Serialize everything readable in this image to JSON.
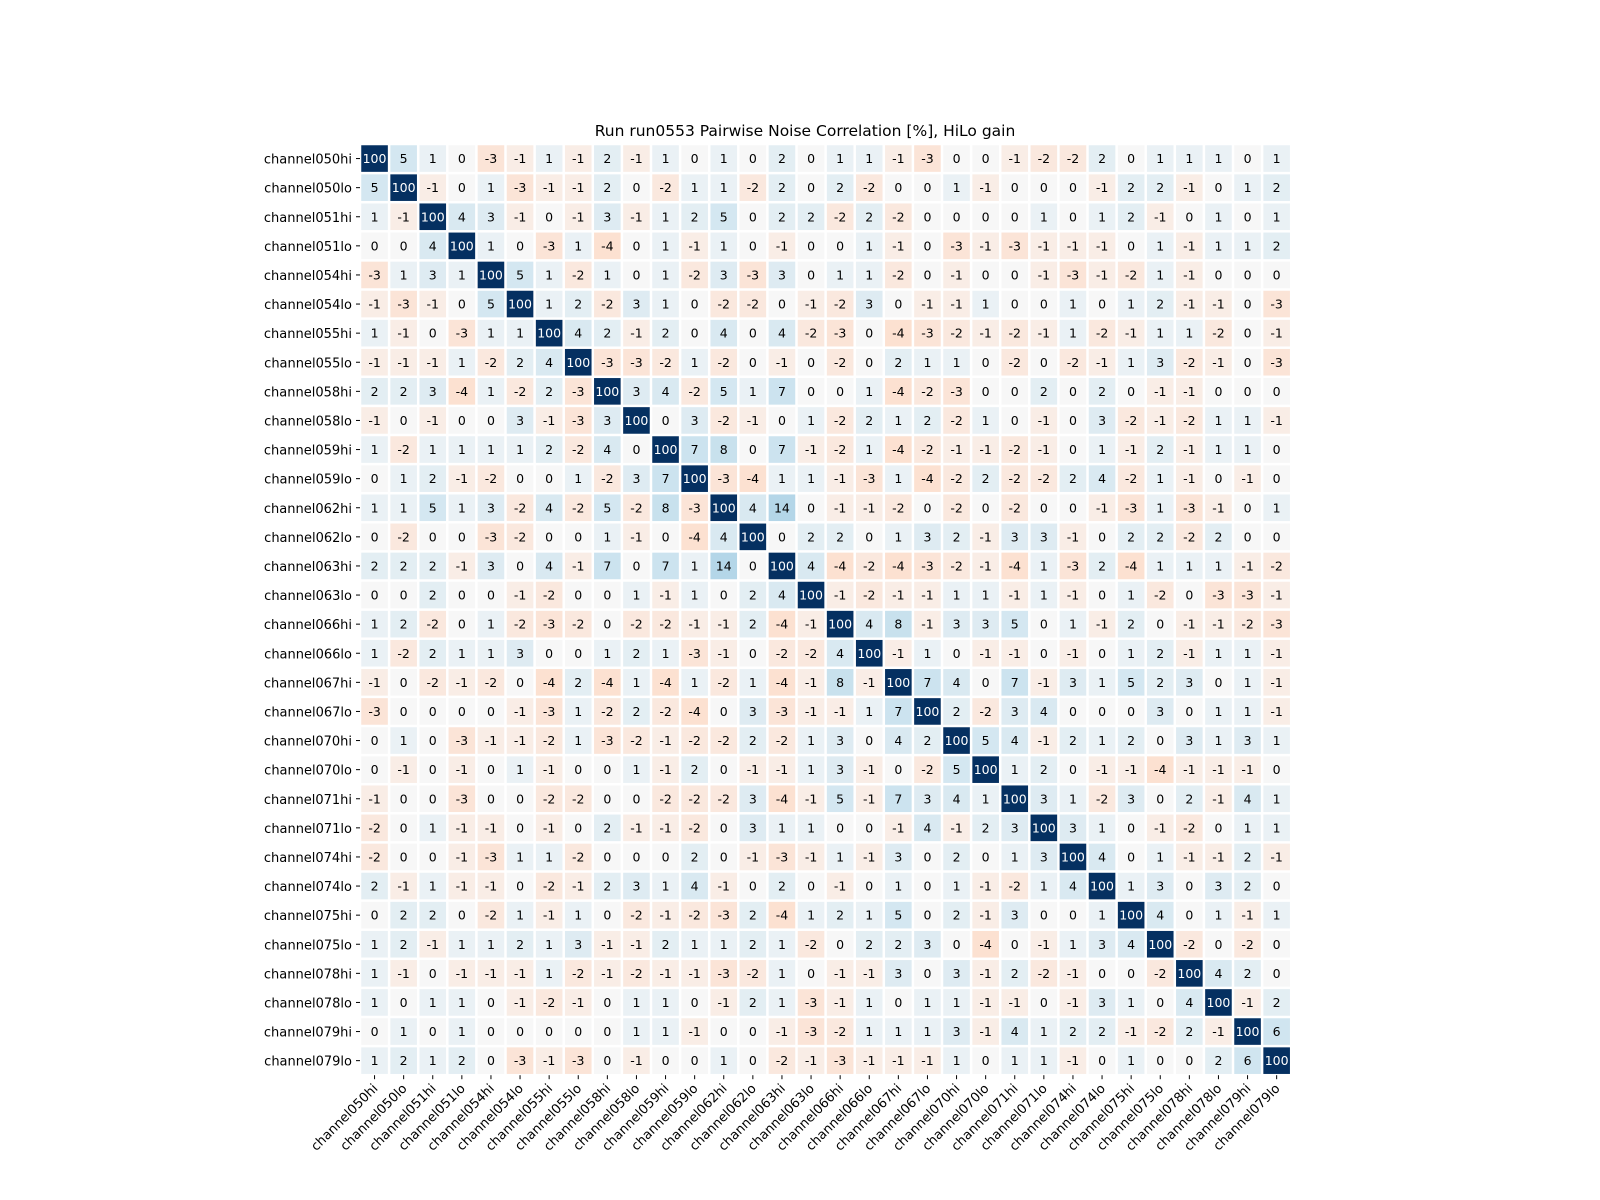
{
  "chart_data": {
    "type": "heatmap",
    "title": "Run run0553 Pairwise Noise Correlation [%], HiLo gain",
    "xlabel": "",
    "ylabel": "",
    "colorscale": "RdBu diverging (negative = red, positive = blue), range -100 to 100",
    "colors": {
      "positive_max": "#053061",
      "negative_max": "#67001f",
      "zero": "#f7f7f7",
      "grid": "#ffffff"
    },
    "legend": "none",
    "labels": [
      "channel050hi",
      "channel050lo",
      "channel051hi",
      "channel051lo",
      "channel054hi",
      "channel054lo",
      "channel055hi",
      "channel055lo",
      "channel058hi",
      "channel058lo",
      "channel059hi",
      "channel059lo",
      "channel062hi",
      "channel062lo",
      "channel063hi",
      "channel063lo",
      "channel066hi",
      "channel066lo",
      "channel067hi",
      "channel067lo",
      "channel070hi",
      "channel070lo",
      "channel071hi",
      "channel071lo",
      "channel074hi",
      "channel074lo",
      "channel075hi",
      "channel075lo",
      "channel078hi",
      "channel078lo",
      "channel079hi",
      "channel079lo"
    ],
    "values": [
      [
        100,
        5,
        1,
        0,
        -3,
        -1,
        1,
        -1,
        2,
        -1,
        1,
        0,
        1,
        0,
        2,
        0,
        1,
        1,
        -1,
        -3,
        0,
        0,
        -1,
        -2,
        -2,
        2,
        0,
        1,
        1,
        1,
        0,
        1
      ],
      [
        5,
        100,
        -1,
        0,
        1,
        -3,
        -1,
        -1,
        2,
        0,
        -2,
        1,
        1,
        -2,
        2,
        0,
        2,
        -2,
        0,
        0,
        1,
        -1,
        0,
        0,
        0,
        -1,
        2,
        2,
        -1,
        0,
        1,
        2
      ],
      [
        1,
        -1,
        100,
        4,
        3,
        -1,
        0,
        -1,
        3,
        -1,
        1,
        2,
        5,
        0,
        2,
        2,
        -2,
        2,
        -2,
        0,
        0,
        0,
        0,
        1,
        0,
        1,
        2,
        -1,
        0,
        1,
        0,
        1
      ],
      [
        0,
        0,
        4,
        100,
        1,
        0,
        -3,
        1,
        -4,
        0,
        1,
        -1,
        1,
        0,
        -1,
        0,
        0,
        1,
        -1,
        0,
        -3,
        -1,
        -3,
        -1,
        -1,
        -1,
        0,
        1,
        -1,
        1,
        1,
        2
      ],
      [
        -3,
        1,
        3,
        1,
        100,
        5,
        1,
        -2,
        1,
        0,
        1,
        -2,
        3,
        -3,
        3,
        0,
        1,
        1,
        -2,
        0,
        -1,
        0,
        0,
        -1,
        -3,
        -1,
        -2,
        1,
        -1,
        0,
        0,
        0
      ],
      [
        -1,
        -3,
        -1,
        0,
        5,
        100,
        1,
        2,
        -2,
        3,
        1,
        0,
        -2,
        -2,
        0,
        -1,
        -2,
        3,
        0,
        -1,
        -1,
        1,
        0,
        0,
        1,
        0,
        1,
        2,
        -1,
        -1,
        0,
        -3
      ],
      [
        1,
        -1,
        0,
        -3,
        1,
        1,
        100,
        4,
        2,
        -1,
        2,
        0,
        4,
        0,
        4,
        -2,
        -3,
        0,
        -4,
        -3,
        -2,
        -1,
        -2,
        -1,
        1,
        -2,
        -1,
        1,
        1,
        -2,
        0,
        -1
      ],
      [
        -1,
        -1,
        -1,
        1,
        -2,
        2,
        4,
        100,
        -3,
        -3,
        -2,
        1,
        -2,
        0,
        -1,
        0,
        -2,
        0,
        2,
        1,
        1,
        0,
        -2,
        0,
        -2,
        -1,
        1,
        3,
        -2,
        -1,
        0,
        -3
      ],
      [
        2,
        2,
        3,
        -4,
        1,
        -2,
        2,
        -3,
        100,
        3,
        4,
        -2,
        5,
        1,
        7,
        0,
        0,
        1,
        -4,
        -2,
        -3,
        0,
        0,
        2,
        0,
        2,
        0,
        -1,
        -1,
        0,
        0,
        0
      ],
      [
        -1,
        0,
        -1,
        0,
        0,
        3,
        -1,
        -3,
        3,
        100,
        0,
        3,
        -2,
        -1,
        0,
        1,
        -2,
        2,
        1,
        2,
        -2,
        1,
        0,
        -1,
        0,
        3,
        -2,
        -1,
        -2,
        1,
        1,
        -1
      ],
      [
        1,
        -2,
        1,
        1,
        1,
        1,
        2,
        -2,
        4,
        0,
        100,
        7,
        8,
        0,
        7,
        -1,
        -2,
        1,
        -4,
        -2,
        -1,
        -1,
        -2,
        -1,
        0,
        1,
        -1,
        2,
        -1,
        1,
        1,
        0
      ],
      [
        0,
        1,
        2,
        -1,
        -2,
        0,
        0,
        1,
        -2,
        3,
        7,
        100,
        -3,
        -4,
        1,
        1,
        -1,
        -3,
        1,
        -4,
        -2,
        2,
        -2,
        -2,
        2,
        4,
        -2,
        1,
        -1,
        0,
        -1,
        0
      ],
      [
        1,
        1,
        5,
        1,
        3,
        -2,
        4,
        -2,
        5,
        -2,
        8,
        -3,
        100,
        4,
        14,
        0,
        -1,
        -1,
        -2,
        0,
        -2,
        0,
        -2,
        0,
        0,
        -1,
        -3,
        1,
        -3,
        -1,
        0,
        1
      ],
      [
        0,
        -2,
        0,
        0,
        -3,
        -2,
        0,
        0,
        1,
        -1,
        0,
        -4,
        4,
        100,
        0,
        2,
        2,
        0,
        1,
        3,
        2,
        -1,
        3,
        3,
        -1,
        0,
        2,
        2,
        -2,
        2,
        0,
        0
      ],
      [
        2,
        2,
        2,
        -1,
        3,
        0,
        4,
        -1,
        7,
        0,
        7,
        1,
        14,
        0,
        100,
        4,
        -4,
        -2,
        -4,
        -3,
        -2,
        -1,
        -4,
        1,
        -3,
        2,
        -4,
        1,
        1,
        1,
        -1,
        -2
      ],
      [
        0,
        0,
        2,
        0,
        0,
        -1,
        -2,
        0,
        0,
        1,
        -1,
        1,
        0,
        2,
        4,
        100,
        -1,
        -2,
        -1,
        -1,
        1,
        1,
        -1,
        1,
        -1,
        0,
        1,
        -2,
        0,
        -3,
        -3,
        -1
      ],
      [
        1,
        2,
        -2,
        0,
        1,
        -2,
        -3,
        -2,
        0,
        -2,
        -2,
        -1,
        -1,
        2,
        -4,
        -1,
        100,
        4,
        8,
        -1,
        3,
        3,
        5,
        0,
        1,
        -1,
        2,
        0,
        -1,
        -1,
        -2,
        -3
      ],
      [
        1,
        -2,
        2,
        1,
        1,
        3,
        0,
        0,
        1,
        2,
        1,
        -3,
        -1,
        0,
        -2,
        -2,
        4,
        100,
        -1,
        1,
        0,
        -1,
        -1,
        0,
        -1,
        0,
        1,
        2,
        -1,
        1,
        1,
        -1
      ],
      [
        -1,
        0,
        -2,
        -1,
        -2,
        0,
        -4,
        2,
        -4,
        1,
        -4,
        1,
        -2,
        1,
        -4,
        -1,
        8,
        -1,
        100,
        7,
        4,
        0,
        7,
        -1,
        3,
        1,
        5,
        2,
        3,
        0,
        1,
        -1
      ],
      [
        -3,
        0,
        0,
        0,
        0,
        -1,
        -3,
        1,
        -2,
        2,
        -2,
        -4,
        0,
        3,
        -3,
        -1,
        -1,
        1,
        7,
        100,
        2,
        -2,
        3,
        4,
        0,
        0,
        0,
        3,
        0,
        1,
        1,
        -1
      ],
      [
        0,
        1,
        0,
        -3,
        -1,
        -1,
        -2,
        1,
        -3,
        -2,
        -1,
        -2,
        -2,
        2,
        -2,
        1,
        3,
        0,
        4,
        2,
        100,
        5,
        4,
        -1,
        2,
        1,
        2,
        0,
        3,
        1,
        3,
        1
      ],
      [
        0,
        -1,
        0,
        -1,
        0,
        1,
        -1,
        0,
        0,
        1,
        -1,
        2,
        0,
        -1,
        -1,
        1,
        3,
        -1,
        0,
        -2,
        5,
        100,
        1,
        2,
        0,
        -1,
        -1,
        -4,
        -1,
        -1,
        -1,
        0
      ],
      [
        -1,
        0,
        0,
        -3,
        0,
        0,
        -2,
        -2,
        0,
        0,
        -2,
        -2,
        -2,
        3,
        -4,
        -1,
        5,
        -1,
        7,
        3,
        4,
        1,
        100,
        3,
        1,
        -2,
        3,
        0,
        2,
        -1,
        4,
        1
      ],
      [
        -2,
        0,
        1,
        -1,
        -1,
        0,
        -1,
        0,
        2,
        -1,
        -1,
        -2,
        0,
        3,
        1,
        1,
        0,
        0,
        -1,
        4,
        -1,
        2,
        3,
        100,
        3,
        1,
        0,
        -1,
        -2,
        0,
        1,
        1
      ],
      [
        -2,
        0,
        0,
        -1,
        -3,
        1,
        1,
        -2,
        0,
        0,
        0,
        2,
        0,
        -1,
        -3,
        -1,
        1,
        -1,
        3,
        0,
        2,
        0,
        1,
        3,
        100,
        4,
        0,
        1,
        -1,
        -1,
        2,
        -1
      ],
      [
        2,
        -1,
        1,
        -1,
        -1,
        0,
        -2,
        -1,
        2,
        3,
        1,
        4,
        -1,
        0,
        2,
        0,
        -1,
        0,
        1,
        0,
        1,
        -1,
        -2,
        1,
        4,
        100,
        1,
        3,
        0,
        3,
        2,
        0
      ],
      [
        0,
        2,
        2,
        0,
        -2,
        1,
        -1,
        1,
        0,
        -2,
        -1,
        -2,
        -3,
        2,
        -4,
        1,
        2,
        1,
        5,
        0,
        2,
        -1,
        3,
        0,
        0,
        1,
        100,
        4,
        0,
        1,
        -1,
        1
      ],
      [
        1,
        2,
        -1,
        1,
        1,
        2,
        1,
        3,
        -1,
        -1,
        2,
        1,
        1,
        2,
        1,
        -2,
        0,
        2,
        2,
        3,
        0,
        -4,
        0,
        -1,
        1,
        3,
        4,
        100,
        -2,
        0,
        -2,
        0
      ],
      [
        1,
        -1,
        0,
        -1,
        -1,
        -1,
        1,
        -2,
        -1,
        -2,
        -1,
        -1,
        -3,
        -2,
        1,
        0,
        -1,
        -1,
        3,
        0,
        3,
        -1,
        2,
        -2,
        -1,
        0,
        0,
        -2,
        100,
        4,
        2,
        0
      ],
      [
        1,
        0,
        1,
        1,
        0,
        -1,
        -2,
        -1,
        0,
        1,
        1,
        0,
        -1,
        2,
        1,
        -3,
        -1,
        1,
        0,
        1,
        1,
        -1,
        -1,
        0,
        -1,
        3,
        1,
        0,
        4,
        100,
        -1,
        2
      ],
      [
        0,
        1,
        0,
        1,
        0,
        0,
        0,
        0,
        0,
        1,
        1,
        -1,
        0,
        0,
        -1,
        -3,
        -2,
        1,
        1,
        1,
        3,
        -1,
        4,
        1,
        2,
        2,
        -1,
        -2,
        2,
        -1,
        100,
        6
      ],
      [
        1,
        2,
        1,
        2,
        0,
        -3,
        -1,
        -3,
        0,
        -1,
        0,
        0,
        1,
        0,
        -2,
        -1,
        -3,
        -1,
        -1,
        -1,
        1,
        0,
        1,
        1,
        -1,
        0,
        1,
        0,
        0,
        2,
        6,
        100
      ]
    ]
  }
}
